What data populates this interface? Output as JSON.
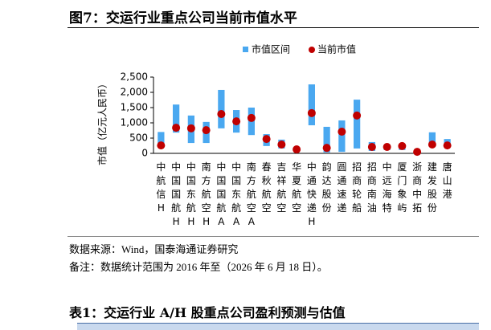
{
  "header": {
    "title": "图7：交运行业重点公司当前市值水平"
  },
  "chart_data": {
    "type": "range_bar",
    "y_label": "市值（亿元人民币）",
    "categories": [
      "中航信H",
      "中国国航H",
      "中国东航H",
      "南方航空H",
      "中国国航A",
      "中国东航A",
      "南方航空A",
      "春秋航空",
      "吉祥航空",
      "华夏航空",
      "中通快递H",
      "韵达股份",
      "圆通速递",
      "招商轮船",
      "招商南油",
      "中远海特",
      "厦门象屿",
      "浙商中拓",
      "建发股份",
      "唐山港"
    ],
    "series": [
      {
        "name": "市值区间",
        "color": "#4aa8f0",
        "low": [
          260,
          680,
          340,
          340,
          820,
          680,
          600,
          240,
          160,
          100,
          920,
          30,
          50,
          160,
          80,
          110,
          110,
          30,
          260,
          210
        ],
        "high": [
          700,
          1600,
          1240,
          1030,
          2080,
          1420,
          1500,
          630,
          450,
          200,
          2260,
          870,
          1080,
          1760,
          370,
          290,
          290,
          80,
          690,
          470
        ]
      },
      {
        "name": "当前市值",
        "color": "#c00000",
        "values": [
          260,
          840,
          820,
          760,
          1290,
          1050,
          1160,
          470,
          290,
          130,
          1320,
          180,
          710,
          1240,
          210,
          210,
          240,
          50,
          290,
          260
        ]
      }
    ],
    "ylim": [
      0,
      2500
    ],
    "yticks": [
      0,
      500,
      {
        "value": 1000,
        "label": "1,000"
      },
      {
        "value": 1500,
        "label": "1,500"
      },
      {
        "value": 2000,
        "label": "2,000"
      },
      {
        "value": 2500,
        "label": "2,500"
      }
    ],
    "legend": "top"
  },
  "notes": {
    "source": "数据来源：Wind，国泰海通证券研究",
    "remark": "备注：数据统计范围为 2016 年至（2026 年 6 月 18 日）。"
  },
  "table": {
    "title": "表1：交运行业 A/H 股重点公司盈利预测与估值"
  }
}
